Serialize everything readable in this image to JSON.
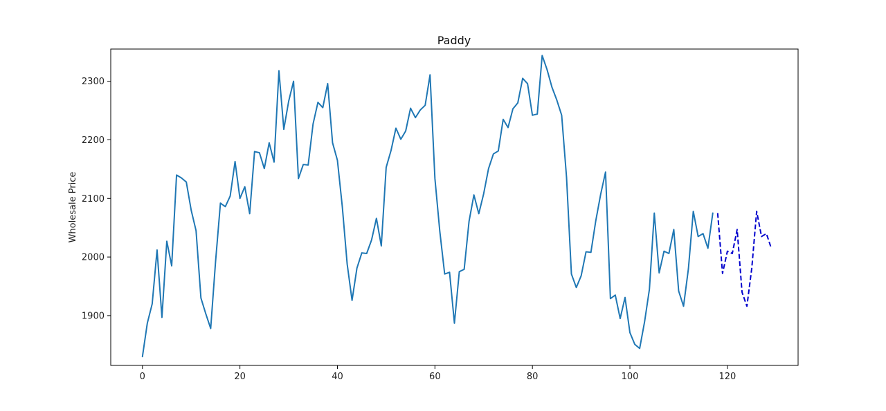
{
  "chart_data": {
    "type": "line",
    "title": "Paddy",
    "xlabel": "",
    "ylabel": "Wholesale Price",
    "xlim": [
      -6.5,
      134.5
    ],
    "ylim": [
      1815,
      2355
    ],
    "x_ticks": [
      0,
      20,
      40,
      60,
      80,
      100,
      120
    ],
    "y_ticks": [
      1900,
      2000,
      2100,
      2200,
      2300
    ],
    "grid": false,
    "legend": "none",
    "series": [
      {
        "style": "solid",
        "color": "#1f77b4",
        "x": [
          0,
          1,
          2,
          3,
          4,
          5,
          6,
          7,
          8,
          9,
          10,
          11,
          12,
          13,
          14,
          15,
          16,
          17,
          18,
          19,
          20,
          21,
          22,
          23,
          24,
          25,
          26,
          27,
          28,
          29,
          30,
          31,
          32,
          33,
          34,
          35,
          36,
          37,
          38,
          39,
          40,
          41,
          42,
          43,
          44,
          45,
          46,
          47,
          48,
          49,
          50,
          51,
          52,
          53,
          54,
          55,
          56,
          57,
          58,
          59,
          60,
          61,
          62,
          63,
          64,
          65,
          66,
          67,
          68,
          69,
          70,
          71,
          72,
          73,
          74,
          75,
          76,
          77,
          78,
          79,
          80,
          81,
          82,
          83,
          84,
          85,
          86,
          87,
          88,
          89,
          90,
          91,
          92,
          93,
          94,
          95,
          96,
          97,
          98,
          99,
          100,
          101,
          102,
          103,
          104,
          105,
          106,
          107,
          108,
          109,
          110,
          111,
          112,
          113,
          114,
          115,
          116,
          117
        ],
        "y": [
          1830,
          1887,
          1920,
          2012,
          1897,
          2027,
          1985,
          2140,
          2135,
          2128,
          2080,
          2045,
          1930,
          1903,
          1878,
          1992,
          2092,
          2086,
          2104,
          2163,
          2100,
          2120,
          2074,
          2180,
          2178,
          2151,
          2195,
          2162,
          2318,
          2218,
          2266,
          2300,
          2134,
          2158,
          2157,
          2227,
          2264,
          2255,
          2296,
          2195,
          2165,
          2086,
          1988,
          1926,
          1981,
          2007,
          2006,
          2029,
          2066,
          2019,
          2153,
          2182,
          2220,
          2201,
          2215,
          2254,
          2238,
          2251,
          2259,
          2311,
          2134,
          2044,
          1971,
          1974,
          1887,
          1975,
          1979,
          2061,
          2106,
          2074,
          2108,
          2151,
          2176,
          2181,
          2235,
          2221,
          2253,
          2263,
          2305,
          2296,
          2242,
          2244,
          2344,
          2320,
          2290,
          2268,
          2242,
          2136,
          1971,
          1948,
          1968,
          2009,
          2008,
          2062,
          2107,
          2145,
          1929,
          1935,
          1895,
          1931,
          1871,
          1851,
          1844,
          1889,
          1945,
          2075,
          1973,
          2010,
          2006,
          2047,
          1942,
          1916,
          1980,
          2078,
          2035,
          2040,
          2015,
          2075
        ]
      },
      {
        "style": "dashed",
        "color": "#0000cd",
        "x": [
          118,
          119,
          120,
          121,
          122,
          123,
          124,
          125,
          126,
          127,
          128,
          129
        ],
        "y": [
          2075,
          1972,
          2010,
          2006,
          2047,
          1940,
          1916,
          1981,
          2078,
          2035,
          2040,
          2015
        ]
      }
    ]
  }
}
